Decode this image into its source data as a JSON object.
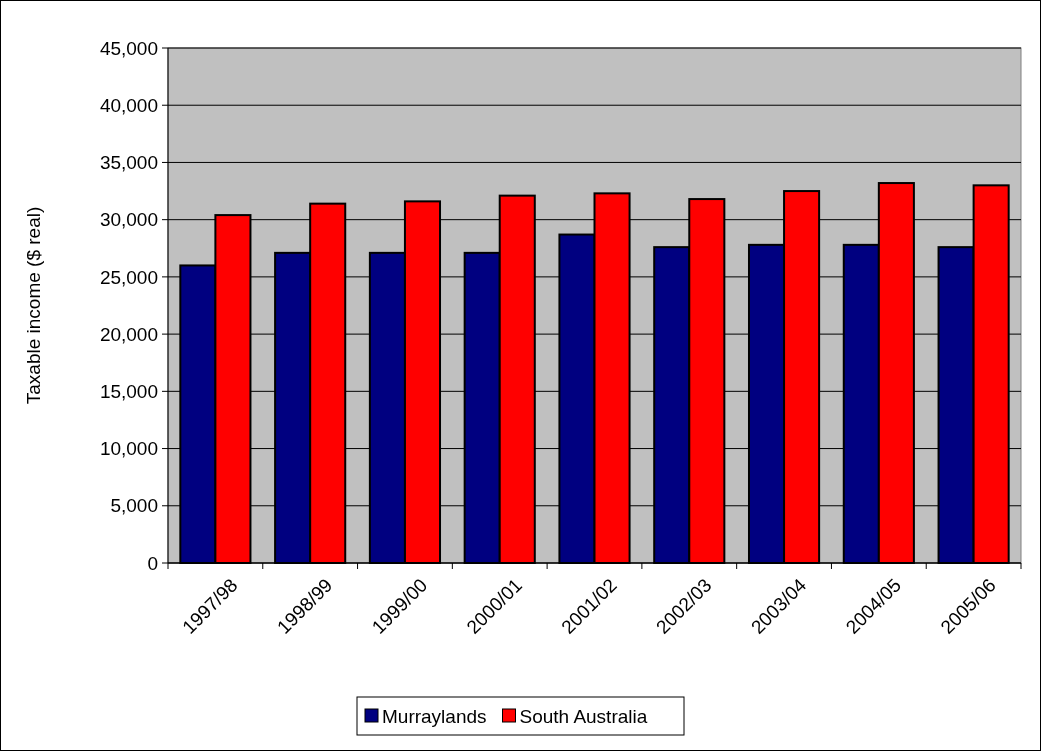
{
  "chart_data": {
    "type": "bar",
    "ylabel": "Taxable income ($ real)",
    "categories": [
      "1997/98",
      "1998/99",
      "1999/00",
      "2000/01",
      "2001/02",
      "2002/03",
      "2003/04",
      "2004/05",
      "2005/06"
    ],
    "series": [
      {
        "name": "Murraylands",
        "color": "#000080",
        "values": [
          26000,
          27100,
          27100,
          27100,
          28700,
          27600,
          27800,
          27800,
          27600
        ]
      },
      {
        "name": "South Australia",
        "color": "#ff0000",
        "values": [
          30400,
          31400,
          31600,
          32100,
          32300,
          31800,
          32500,
          33200,
          33000
        ]
      }
    ],
    "ylim": [
      0,
      45000
    ],
    "yticks": [
      {
        "value": 0,
        "label": "0"
      },
      {
        "value": 5000,
        "label": "5,000"
      },
      {
        "value": 10000,
        "label": "10,000"
      },
      {
        "value": 15000,
        "label": "15,000"
      },
      {
        "value": 20000,
        "label": "20,000"
      },
      {
        "value": 25000,
        "label": "25,000"
      },
      {
        "value": 30000,
        "label": "30,000"
      },
      {
        "value": 35000,
        "label": "35,000"
      },
      {
        "value": 40000,
        "label": "40,000"
      },
      {
        "value": 45000,
        "label": "45,000"
      }
    ],
    "grid": "y",
    "legend": "bottom"
  }
}
